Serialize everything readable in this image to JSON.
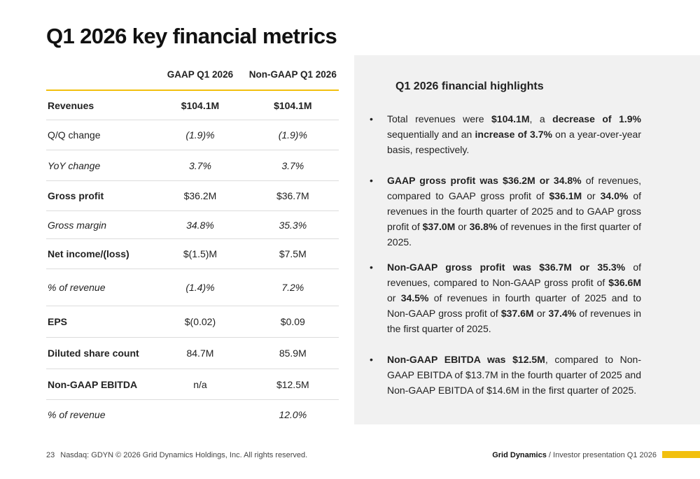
{
  "title": "Q1 2026 key financial metrics",
  "table": {
    "headers": [
      "",
      "GAAP Q1 2026",
      "Non-GAAP Q1 2026"
    ],
    "rows": [
      {
        "label": "Revenues",
        "gaap": "$104.1M",
        "nongaap": "$104.1M",
        "style": "bold"
      },
      {
        "label": "Q/Q change",
        "gaap": "(1.9)%",
        "nongaap": "(1.9)%",
        "style": "italic"
      },
      {
        "label": "YoY change",
        "gaap": "3.7%",
        "nongaap": "3.7%",
        "style": "italic"
      },
      {
        "label": "Gross profit",
        "gaap": "$36.2M",
        "nongaap": "$36.7M",
        "style": "bold"
      },
      {
        "label": "Gross margin",
        "gaap": "34.8%",
        "nongaap": "35.3%",
        "style": "italic"
      },
      {
        "label": "Net income/(loss)",
        "gaap": "$(1.5)M",
        "nongaap": "$7.5M",
        "style": "bold"
      },
      {
        "label": "% of revenue",
        "gaap": "(1.4)%",
        "nongaap": "7.2%",
        "style": "italic"
      },
      {
        "label": "EPS",
        "gaap": "$(0.02)",
        "nongaap": "$0.09",
        "style": "bold"
      },
      {
        "label": "Diluted share count",
        "gaap": "84.7M",
        "nongaap": "85.9M",
        "style": "bold"
      },
      {
        "label": "Non-GAAP EBITDA",
        "gaap": "n/a",
        "nongaap": "$12.5M",
        "style": "bold"
      },
      {
        "label": "% of revenue",
        "gaap": "",
        "nongaap": "12.0%",
        "style": "italic"
      }
    ]
  },
  "highlights": {
    "title": "Q1 2026 financial highlights",
    "bullet": "•",
    "items": [
      [
        {
          "t": "Total revenues were "
        },
        {
          "t": "$104.1M",
          "b": true
        },
        {
          "t": ", a "
        },
        {
          "t": "decrease of 1.9%",
          "b": true
        },
        {
          "t": " sequentially and an "
        },
        {
          "t": "increase of 3.7%",
          "b": true
        },
        {
          "t": "  on a year-over-year basis, respectively."
        }
      ],
      [
        {
          "t": "GAAP gross profit was $36.2M or 34.8%",
          "b": true
        },
        {
          "t": " of revenues, compared to GAAP gross profit of "
        },
        {
          "t": "$36.1M",
          "b": true
        },
        {
          "t": " or "
        },
        {
          "t": "34.0%",
          "b": true
        },
        {
          "t": " of revenues in the fourth quarter of 2025 and to GAAP gross profit of "
        },
        {
          "t": "$37.0M",
          "b": true
        },
        {
          "t": " or "
        },
        {
          "t": "36.8%",
          "b": true
        },
        {
          "t": " of revenues in the first quarter of 2025."
        }
      ],
      [
        {
          "t": "Non-GAAP gross profit was $36.7M or 35.3%",
          "b": true
        },
        {
          "t": " of revenues, compared to Non-GAAP gross profit of "
        },
        {
          "t": "$36.6M",
          "b": true
        },
        {
          "t": " or "
        },
        {
          "t": "34.5%",
          "b": true
        },
        {
          "t": " of revenues in fourth quarter of 2025 and to Non-GAAP gross profit of "
        },
        {
          "t": "$37.6M",
          "b": true
        },
        {
          "t": " or "
        },
        {
          "t": "37.4%",
          "b": true
        },
        {
          "t": " of revenues in the first quarter of 2025."
        }
      ],
      [
        {
          "t": "Non-GAAP EBITDA was $12.5M",
          "b": true
        },
        {
          "t": ", compared to Non-GAAP EBITDA of $13.7M in the fourth quarter of 2025 and Non-GAAP EBITDA of $14.6M in the first quarter of 2025."
        }
      ]
    ]
  },
  "footer": {
    "page_number": "23",
    "legal": "Nasdaq: GDYN © 2026 Grid Dynamics Holdings, Inc. All rights reserved.",
    "brand": "Grid Dynamics",
    "separator": " / ",
    "presentation": "Investor presentation Q1 2026"
  },
  "colors": {
    "accent": "#f2c00e",
    "panel": "#f1f1f1"
  }
}
